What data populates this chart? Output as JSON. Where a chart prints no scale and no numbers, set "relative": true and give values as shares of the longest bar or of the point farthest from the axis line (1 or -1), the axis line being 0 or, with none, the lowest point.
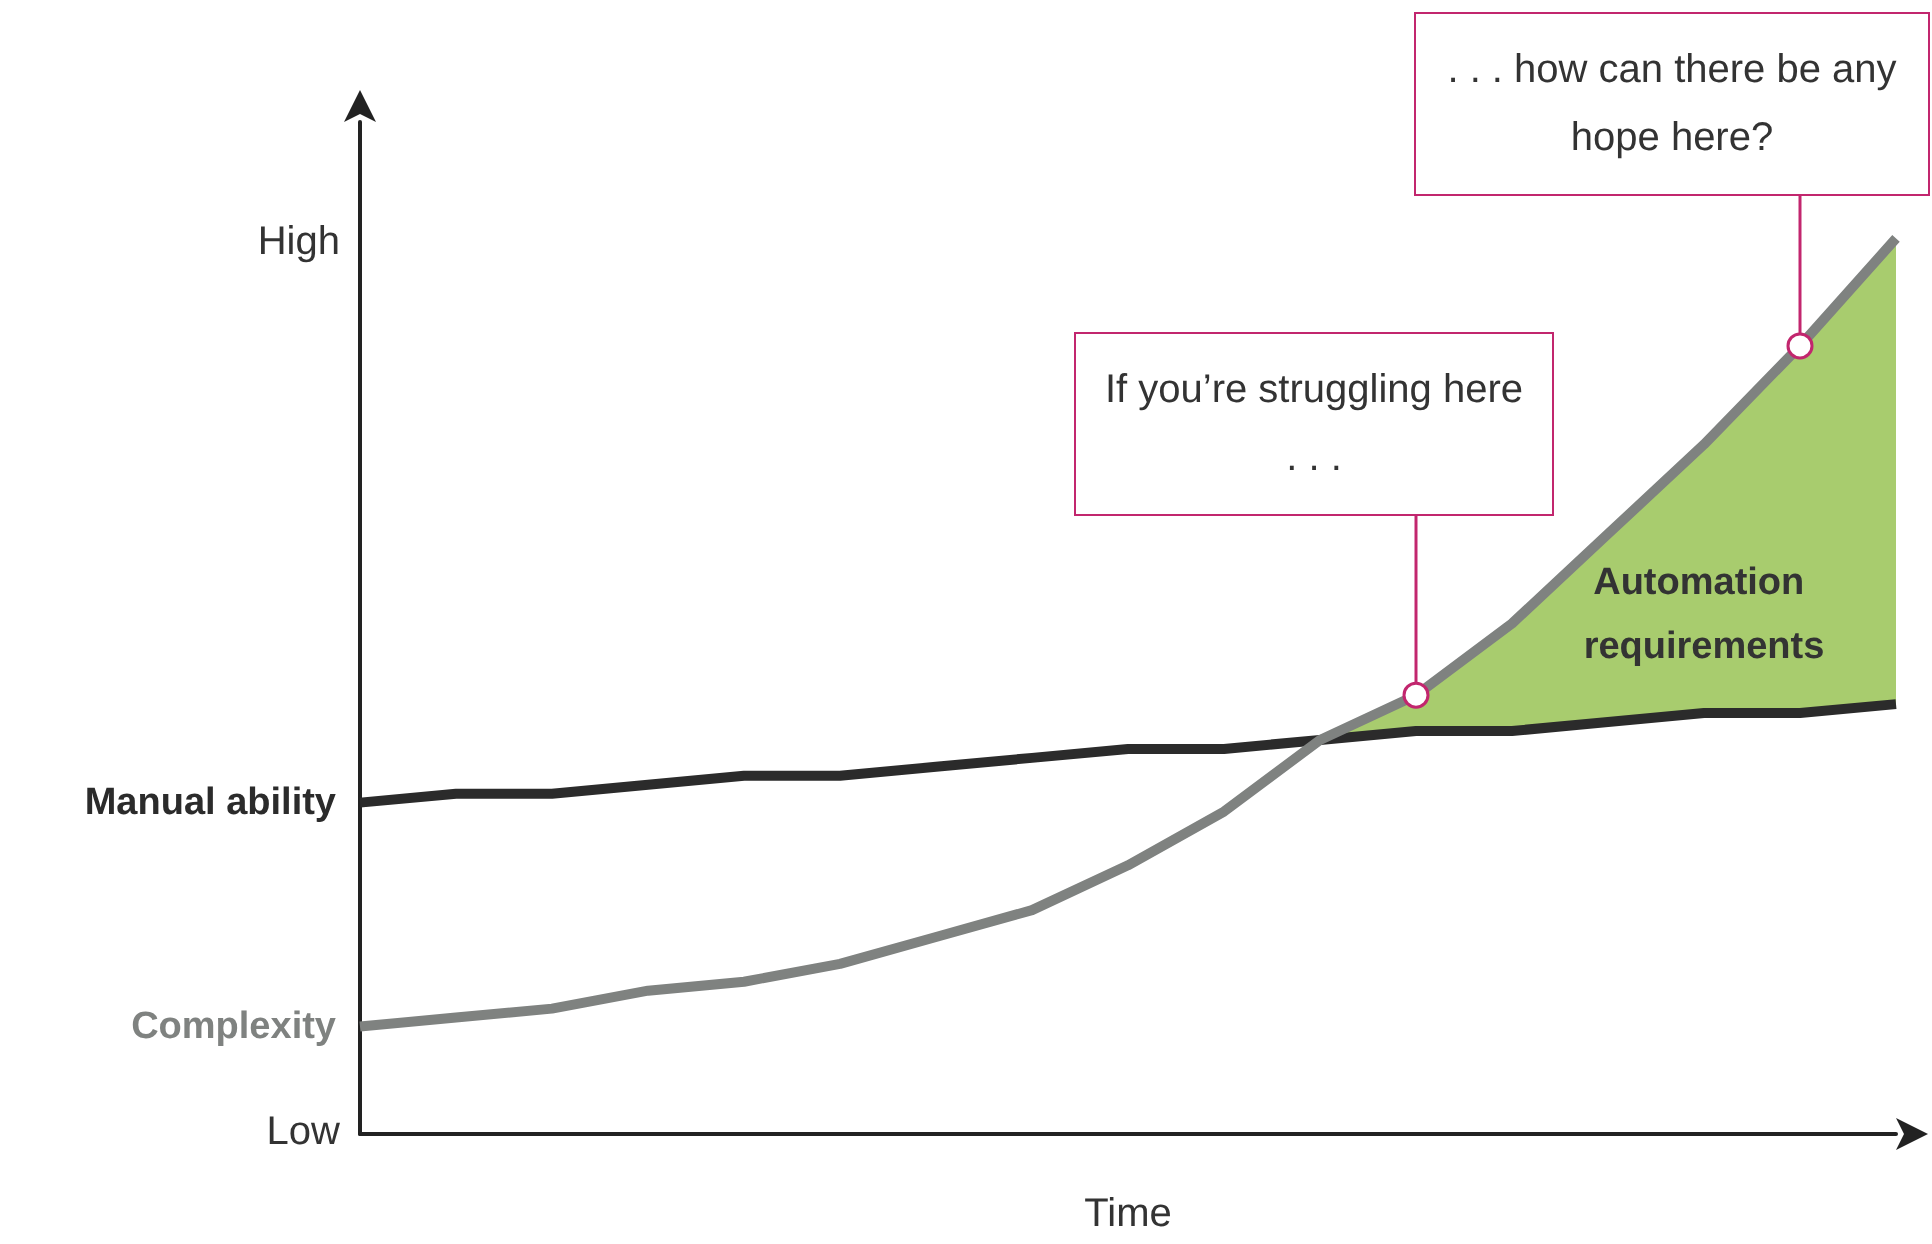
{
  "chart_data": {
    "type": "line",
    "xlabel": "Time",
    "relative": true,
    "categories": [
      null,
      null,
      null,
      null,
      null,
      null,
      null,
      null,
      null,
      null,
      null,
      null,
      null,
      null,
      null,
      null,
      null
    ],
    "series": [
      {
        "name": "Manual ability",
        "color": "#2b2b2b",
        "values": [
          0.37,
          0.38,
          0.38,
          0.39,
          0.4,
          0.4,
          0.41,
          0.42,
          0.43,
          0.43,
          0.44,
          0.45,
          0.45,
          0.46,
          0.47,
          0.47,
          0.48
        ]
      },
      {
        "name": "Complexity",
        "color": "#7f8280",
        "values": [
          0.12,
          0.13,
          0.14,
          0.16,
          0.17,
          0.19,
          0.22,
          0.25,
          0.3,
          0.36,
          0.44,
          0.49,
          0.57,
          0.67,
          0.77,
          0.88,
          1.0
        ]
      },
      {
        "type": "area",
        "name": "Automation requirements",
        "color": "#a8cc6e",
        "values": [
          null,
          null,
          null,
          null,
          null,
          null,
          null,
          null,
          null,
          null,
          0.44,
          0.49,
          0.57,
          0.67,
          0.77,
          0.88,
          1.0
        ]
      }
    ],
    "grid": false,
    "legend": false,
    "marker": "none",
    "annotations": [
      "If you’re struggling here . . .",
      ". . . how can there be any hope here?",
      "High",
      "Low"
    ]
  }
}
